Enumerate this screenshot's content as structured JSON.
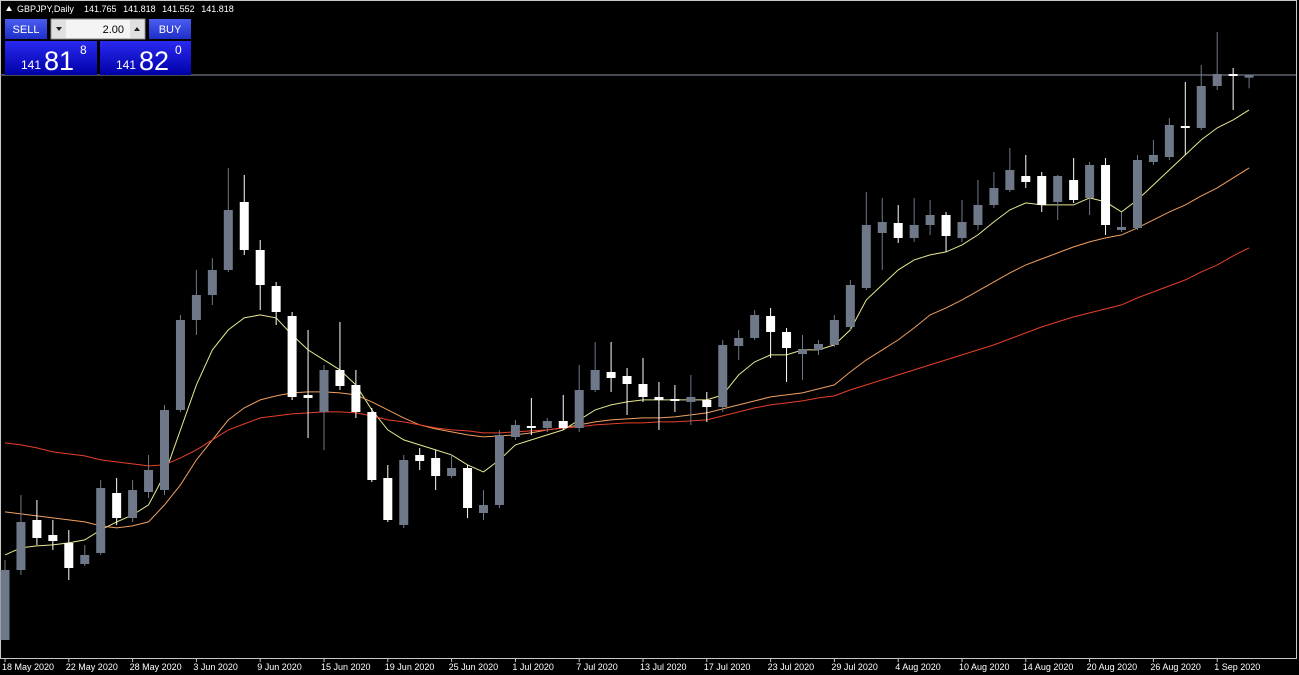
{
  "header": {
    "symbol": "GBPJPY,Daily"
  },
  "trade_panel": {
    "sell": "SELL",
    "buy": "BUY",
    "lots": "2.00",
    "bid": {
      "big": "141",
      "main": "81",
      "sup": "8"
    },
    "ask": {
      "big": "141",
      "main": "82",
      "sup": "0"
    }
  },
  "chart_data": {
    "type": "candlestick",
    "categories": [
      "18 May 2020",
      null,
      null,
      null,
      "22 May 2020",
      null,
      null,
      null,
      "28 May 2020",
      null,
      null,
      null,
      "3 Jun 2020",
      null,
      null,
      null,
      "9 Jun 2020",
      null,
      null,
      null,
      "15 Jun 2020",
      null,
      null,
      null,
      "19 Jun 2020",
      null,
      null,
      null,
      "25 Jun 2020",
      null,
      null,
      null,
      "1 Jul 2020",
      null,
      null,
      null,
      "7 Jul 2020",
      null,
      null,
      null,
      "13 Jul 2020",
      null,
      null,
      null,
      "17 Jul 2020",
      null,
      null,
      null,
      "23 Jul 2020",
      null,
      null,
      null,
      "29 Jul 2020",
      null,
      null,
      null,
      "4 Aug 2020",
      null,
      null,
      null,
      "10 Aug 2020",
      null,
      null,
      null,
      "14 Aug 2020",
      null,
      null,
      null,
      "20 Aug 2020",
      null,
      null,
      null,
      "26 Aug 2020",
      null,
      null,
      null,
      "1 Sep 2020",
      null,
      null
    ],
    "open": [
      130.518,
      131.918,
      132.918,
      132.618,
      132.458,
      132.038,
      132.258,
      133.458,
      132.958,
      133.478,
      133.518,
      135.118,
      136.918,
      137.418,
      137.918,
      139.278,
      138.318,
      137.598,
      136.998,
      135.418,
      135.078,
      135.918,
      135.618,
      135.078,
      133.758,
      132.818,
      134.218,
      134.158,
      133.798,
      133.958,
      133.058,
      133.218,
      134.578,
      134.798,
      134.758,
      134.898,
      134.758,
      135.518,
      135.878,
      135.798,
      135.638,
      135.378,
      135.338,
      135.278,
      135.318,
      135.178,
      136.398,
      136.558,
      136.998,
      136.678,
      136.238,
      136.318,
      136.418,
      136.778,
      137.558,
      138.658,
      138.858,
      138.558,
      138.818,
      139.018,
      138.558,
      138.818,
      139.218,
      139.518,
      139.798,
      139.798,
      139.278,
      139.718,
      139.358,
      140.018,
      138.718,
      138.758,
      140.078,
      140.178,
      140.798,
      140.758,
      141.598,
      141.838,
      141.765
    ],
    "high": [
      132.118,
      133.418,
      133.318,
      132.918,
      132.718,
      132.418,
      133.718,
      133.758,
      133.718,
      134.218,
      135.218,
      137.018,
      137.918,
      138.158,
      139.958,
      139.818,
      138.518,
      137.678,
      137.078,
      136.718,
      136.018,
      136.878,
      135.918,
      135.158,
      134.018,
      134.218,
      134.358,
      134.318,
      134.218,
      134.018,
      133.518,
      134.718,
      134.918,
      135.358,
      134.958,
      135.418,
      136.018,
      136.478,
      136.478,
      135.958,
      136.158,
      135.678,
      135.618,
      135.818,
      135.478,
      136.518,
      136.718,
      137.118,
      137.158,
      136.758,
      136.618,
      136.518,
      137.018,
      137.718,
      139.478,
      139.358,
      139.218,
      139.358,
      139.318,
      139.078,
      139.318,
      139.718,
      139.878,
      140.358,
      140.218,
      139.878,
      139.818,
      140.158,
      140.078,
      140.158,
      139.078,
      140.218,
      140.518,
      140.958,
      141.678,
      142.018,
      142.678,
      141.958,
      141.818
    ],
    "low": [
      130.518,
      131.818,
      132.418,
      132.318,
      131.718,
      131.998,
      132.218,
      132.818,
      132.878,
      133.358,
      133.418,
      135.078,
      136.618,
      137.218,
      137.878,
      138.218,
      137.118,
      136.818,
      135.318,
      134.558,
      134.318,
      135.518,
      134.958,
      133.678,
      132.878,
      132.758,
      133.918,
      133.518,
      133.758,
      132.958,
      132.918,
      133.158,
      134.518,
      134.618,
      134.678,
      134.718,
      134.678,
      135.478,
      135.478,
      135.018,
      135.278,
      134.718,
      135.078,
      134.818,
      134.878,
      135.078,
      136.118,
      136.518,
      136.158,
      135.678,
      135.718,
      136.218,
      136.378,
      136.718,
      137.518,
      137.918,
      138.458,
      138.478,
      138.618,
      138.278,
      138.478,
      138.718,
      139.158,
      139.478,
      139.558,
      139.078,
      138.918,
      139.258,
      139.018,
      138.618,
      138.678,
      138.718,
      140.018,
      140.118,
      140.218,
      140.718,
      141.518,
      141.118,
      141.552
    ],
    "close": [
      131.918,
      132.878,
      132.558,
      132.498,
      131.958,
      132.218,
      133.558,
      132.958,
      133.518,
      133.918,
      135.118,
      136.918,
      137.418,
      137.918,
      139.118,
      138.318,
      137.618,
      137.078,
      135.378,
      135.358,
      135.918,
      135.598,
      135.078,
      133.718,
      132.918,
      134.118,
      134.098,
      133.798,
      133.958,
      133.158,
      133.218,
      134.618,
      134.818,
      134.758,
      134.898,
      134.758,
      135.518,
      135.918,
      135.758,
      135.638,
      135.378,
      135.318,
      135.298,
      135.378,
      135.178,
      136.418,
      136.558,
      137.018,
      136.678,
      136.358,
      136.338,
      136.438,
      136.918,
      137.618,
      138.818,
      138.878,
      138.558,
      138.818,
      139.018,
      138.598,
      138.878,
      139.218,
      139.558,
      139.918,
      139.678,
      139.218,
      139.798,
      139.318,
      140.018,
      138.818,
      138.778,
      140.118,
      140.218,
      140.818,
      140.758,
      141.598,
      141.838,
      141.798,
      141.818
    ],
    "up_color": "#6f7889",
    "down_color": "#ffffff",
    "series": [
      {
        "color": "#e8e890",
        "values": [
          132.22,
          132.36,
          132.4,
          132.42,
          132.46,
          132.52,
          132.72,
          132.88,
          133.02,
          133.22,
          133.82,
          134.72,
          135.62,
          136.32,
          136.72,
          136.96,
          137.02,
          136.96,
          136.62,
          136.32,
          136.12,
          135.92,
          135.62,
          135.12,
          134.72,
          134.52,
          134.42,
          134.32,
          134.22,
          134.02,
          133.88,
          134.12,
          134.42,
          134.52,
          134.62,
          134.72,
          134.92,
          135.12,
          135.22,
          135.28,
          135.32,
          135.32,
          135.32,
          135.32,
          135.32,
          135.42,
          135.82,
          136.08,
          136.22,
          136.22,
          136.32,
          136.32,
          136.42,
          136.72,
          137.32,
          137.62,
          137.92,
          138.12,
          138.22,
          138.28,
          138.42,
          138.62,
          138.88,
          139.12,
          139.26,
          139.22,
          139.22,
          139.22,
          139.36,
          139.28,
          139.08,
          139.32,
          139.62,
          139.92,
          140.22,
          140.52,
          140.76,
          140.92,
          141.12
        ]
      },
      {
        "color": "#f0a060",
        "values": [
          133.08,
          133.04,
          133.0,
          132.96,
          132.92,
          132.88,
          132.8,
          132.76,
          132.8,
          132.88,
          133.22,
          133.62,
          134.12,
          134.52,
          134.92,
          135.16,
          135.32,
          135.4,
          135.46,
          135.48,
          135.48,
          135.46,
          135.42,
          135.28,
          135.12,
          134.96,
          134.82,
          134.74,
          134.68,
          134.62,
          134.58,
          134.6,
          134.62,
          134.66,
          134.72,
          134.76,
          134.82,
          134.88,
          134.92,
          134.94,
          134.96,
          134.96,
          134.98,
          135.02,
          135.06,
          135.14,
          135.22,
          135.3,
          135.38,
          135.42,
          135.46,
          135.54,
          135.62,
          135.88,
          136.12,
          136.32,
          136.52,
          136.76,
          137.02,
          137.16,
          137.32,
          137.5,
          137.68,
          137.86,
          138.02,
          138.14,
          138.26,
          138.38,
          138.48,
          138.56,
          138.62,
          138.76,
          138.92,
          139.08,
          139.22,
          139.4,
          139.56,
          139.76,
          139.96
        ]
      },
      {
        "color": "#e8402a",
        "values": [
          134.46,
          134.42,
          134.36,
          134.28,
          134.24,
          134.2,
          134.12,
          134.08,
          134.04,
          134.0,
          134.02,
          134.16,
          134.32,
          134.52,
          134.72,
          134.84,
          134.96,
          135.0,
          135.04,
          135.06,
          135.08,
          135.08,
          135.06,
          135.0,
          134.92,
          134.88,
          134.82,
          134.76,
          134.72,
          134.7,
          134.66,
          134.66,
          134.68,
          134.7,
          134.72,
          134.76,
          134.78,
          134.82,
          134.84,
          134.86,
          134.86,
          134.88,
          134.88,
          134.9,
          134.92,
          135.0,
          135.08,
          135.16,
          135.22,
          135.26,
          135.3,
          135.36,
          135.4,
          135.52,
          135.62,
          135.72,
          135.82,
          135.92,
          136.02,
          136.12,
          136.22,
          136.32,
          136.42,
          136.54,
          136.66,
          136.78,
          136.88,
          136.98,
          137.06,
          137.14,
          137.22,
          137.36,
          137.48,
          137.6,
          137.72,
          137.88,
          138.02,
          138.2,
          138.36
        ]
      }
    ],
    "ylim": [
      130.158,
      143.318
    ]
  }
}
